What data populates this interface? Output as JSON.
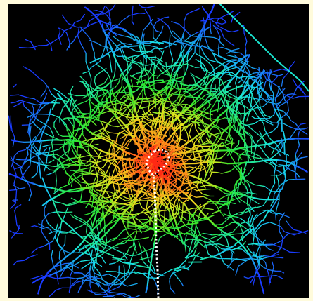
{
  "map": {
    "type": "road-network-heatmap",
    "background_color": "#000000",
    "page_background_color": "#fffbdc",
    "route_color": "#ffffff",
    "route_style": "dotted",
    "color_scale": [
      {
        "stop": 0.0,
        "color": "#1a3cff"
      },
      {
        "stop": 0.25,
        "color": "#19e6e6"
      },
      {
        "stop": 0.5,
        "color": "#2de62d"
      },
      {
        "stop": 0.7,
        "color": "#e6e61e"
      },
      {
        "stop": 0.85,
        "color": "#ff8c1a"
      },
      {
        "stop": 1.0,
        "color": "#ff2a14"
      }
    ]
  }
}
